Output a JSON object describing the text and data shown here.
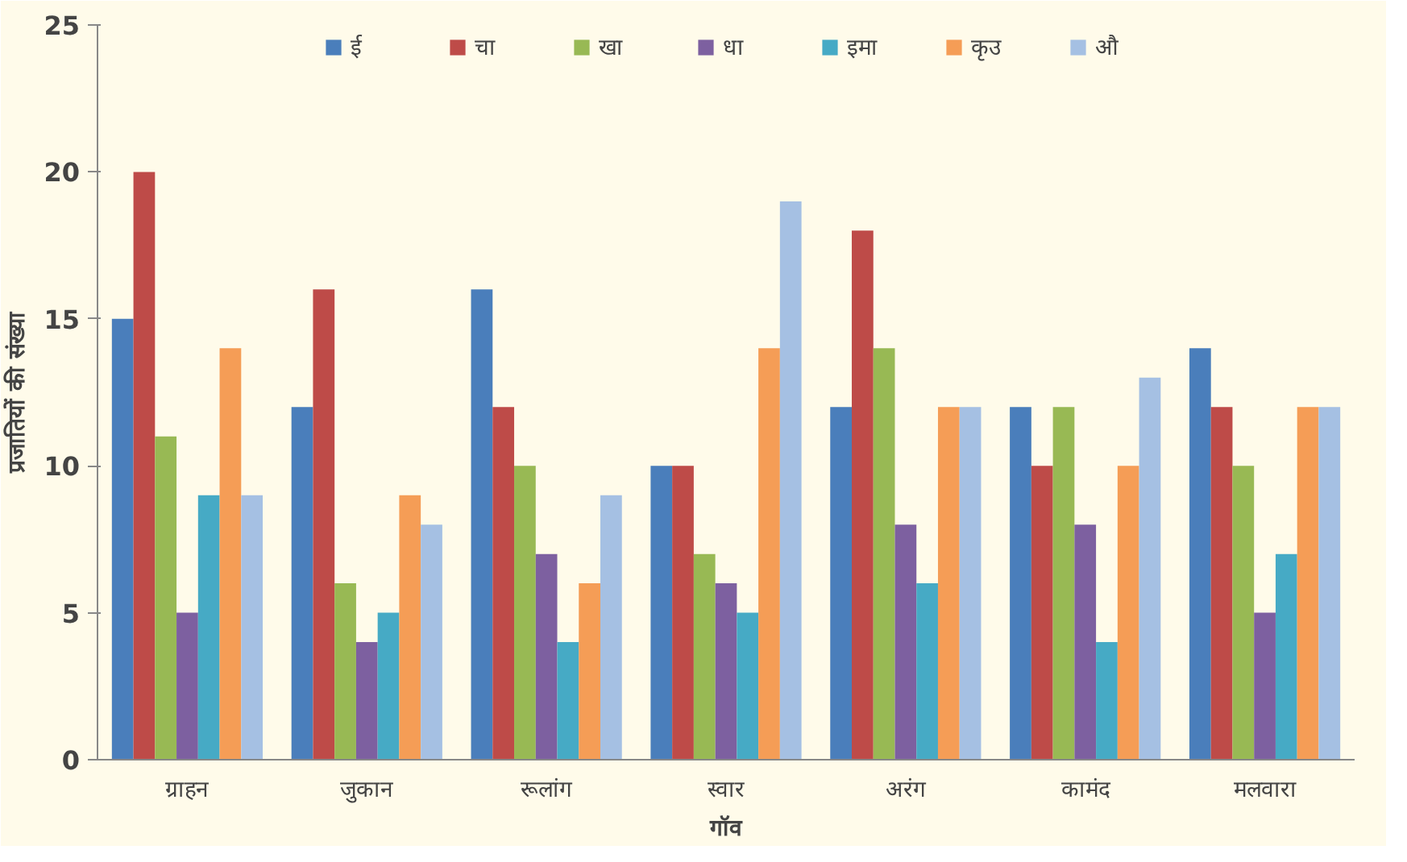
{
  "chart_data": {
    "type": "bar",
    "xlabel": "गॉव",
    "ylabel": "प्रजातियों की संख्या",
    "categories": [
      "ग्राहन",
      "जुकान",
      "रूलांग",
      "स्वार",
      "अरंग",
      "कामंद",
      "मलवारा"
    ],
    "series": [
      {
        "name": "ई",
        "color": "#4a7ebb",
        "values": [
          15,
          12,
          16,
          10,
          12,
          12,
          14
        ]
      },
      {
        "name": "चा",
        "color": "#be4b48",
        "values": [
          20,
          16,
          12,
          10,
          18,
          10,
          12
        ]
      },
      {
        "name": "खा",
        "color": "#98b954",
        "values": [
          11,
          6,
          10,
          7,
          14,
          12,
          10
        ]
      },
      {
        "name": "धा",
        "color": "#7d60a0",
        "values": [
          5,
          4,
          7,
          6,
          8,
          8,
          5
        ]
      },
      {
        "name": "इमा",
        "color": "#46aac5",
        "values": [
          9,
          5,
          4,
          5,
          6,
          4,
          7
        ]
      },
      {
        "name": "कृउ",
        "color": "#f59d56",
        "values": [
          14,
          9,
          6,
          14,
          12,
          10,
          12
        ]
      },
      {
        "name": "औ",
        "color": "#a5c0e3",
        "values": [
          9,
          8,
          9,
          19,
          12,
          13,
          12
        ]
      }
    ],
    "ylim": [
      0,
      25
    ],
    "yticks": [
      0,
      5,
      10,
      15,
      20,
      25
    ],
    "grid": false,
    "legend": "top"
  }
}
